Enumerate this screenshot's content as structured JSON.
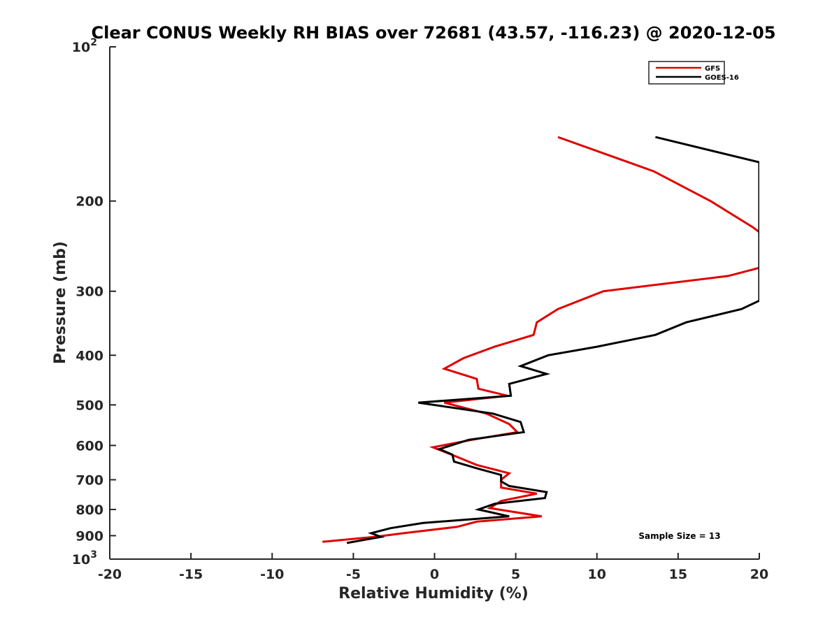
{
  "chart_data": {
    "type": "line",
    "title": "Clear CONUS Weekly RH BIAS over 72681 (43.57, -116.23) @ 2020-12-05",
    "xlabel": "Relative Humidity (%)",
    "ylabel": "Pressure (mb)",
    "xlim": [
      -20,
      20
    ],
    "ylim": [
      100,
      1000
    ],
    "y_scale": "log",
    "y_reversed": true,
    "grid": false,
    "legend_position": "top-right",
    "x_ticks": [
      "-20",
      "-15",
      "-10",
      "-5",
      "0",
      "5",
      "10",
      "15",
      "20"
    ],
    "y_ticks": [
      {
        "value": 100,
        "base": "10",
        "exp": "2"
      },
      {
        "value": 200,
        "label": "200"
      },
      {
        "value": 300,
        "label": "300"
      },
      {
        "value": 400,
        "label": "400"
      },
      {
        "value": 500,
        "label": "500"
      },
      {
        "value": 600,
        "label": "600"
      },
      {
        "value": 700,
        "label": "700"
      },
      {
        "value": 800,
        "label": "800"
      },
      {
        "value": 900,
        "label": "900"
      },
      {
        "value": 1000,
        "base": "10",
        "exp": "3"
      }
    ],
    "series": [
      {
        "name": "GFS",
        "color": "#e00000",
        "points": [
          {
            "x": 7.6,
            "p": 150
          },
          {
            "x": 13.5,
            "p": 175
          },
          {
            "x": 17.0,
            "p": 200
          },
          {
            "x": 19.6,
            "p": 225
          },
          {
            "x": 20.0,
            "p": 230
          },
          {
            "x": 20.0,
            "p": 270
          },
          {
            "x": 18.1,
            "p": 280
          },
          {
            "x": 10.4,
            "p": 300
          },
          {
            "x": 7.6,
            "p": 325
          },
          {
            "x": 6.3,
            "p": 345
          },
          {
            "x": 6.1,
            "p": 365
          },
          {
            "x": 3.7,
            "p": 385
          },
          {
            "x": 1.8,
            "p": 405
          },
          {
            "x": 0.6,
            "p": 425
          },
          {
            "x": 2.6,
            "p": 445
          },
          {
            "x": 2.7,
            "p": 465
          },
          {
            "x": 4.5,
            "p": 480
          },
          {
            "x": 0.6,
            "p": 495
          },
          {
            "x": 3.2,
            "p": 520
          },
          {
            "x": 4.6,
            "p": 545
          },
          {
            "x": 5.1,
            "p": 565
          },
          {
            "x": 2.3,
            "p": 585
          },
          {
            "x": -0.1,
            "p": 605
          },
          {
            "x": 1.3,
            "p": 630
          },
          {
            "x": 2.6,
            "p": 655
          },
          {
            "x": 4.6,
            "p": 680
          },
          {
            "x": 4.1,
            "p": 700
          },
          {
            "x": 4.1,
            "p": 725
          },
          {
            "x": 6.3,
            "p": 745
          },
          {
            "x": 4.1,
            "p": 770
          },
          {
            "x": 3.4,
            "p": 795
          },
          {
            "x": 6.6,
            "p": 825
          },
          {
            "x": 2.6,
            "p": 845
          },
          {
            "x": 1.4,
            "p": 865
          },
          {
            "x": -1.9,
            "p": 890
          },
          {
            "x": -3.7,
            "p": 905
          },
          {
            "x": -6.9,
            "p": 925
          }
        ]
      },
      {
        "name": "GOES-16",
        "color": "#000000",
        "points": [
          {
            "x": 13.6,
            "p": 150
          },
          {
            "x": 20.0,
            "p": 168
          },
          {
            "x": 20.0,
            "p": 313
          },
          {
            "x": 18.9,
            "p": 325
          },
          {
            "x": 15.5,
            "p": 345
          },
          {
            "x": 13.6,
            "p": 365
          },
          {
            "x": 10.0,
            "p": 385
          },
          {
            "x": 7.0,
            "p": 400
          },
          {
            "x": 5.3,
            "p": 420
          },
          {
            "x": 6.9,
            "p": 435
          },
          {
            "x": 4.6,
            "p": 455
          },
          {
            "x": 4.7,
            "p": 480
          },
          {
            "x": -1.0,
            "p": 495
          },
          {
            "x": 3.6,
            "p": 520
          },
          {
            "x": 5.3,
            "p": 540
          },
          {
            "x": 5.5,
            "p": 565
          },
          {
            "x": 2.1,
            "p": 585
          },
          {
            "x": 0.3,
            "p": 610
          },
          {
            "x": 1.1,
            "p": 625
          },
          {
            "x": 1.2,
            "p": 645
          },
          {
            "x": 2.6,
            "p": 665
          },
          {
            "x": 4.1,
            "p": 685
          },
          {
            "x": 4.1,
            "p": 705
          },
          {
            "x": 4.6,
            "p": 720
          },
          {
            "x": 6.9,
            "p": 740
          },
          {
            "x": 6.8,
            "p": 760
          },
          {
            "x": 3.7,
            "p": 780
          },
          {
            "x": 2.7,
            "p": 800
          },
          {
            "x": 4.6,
            "p": 825
          },
          {
            "x": -0.7,
            "p": 850
          },
          {
            "x": -2.7,
            "p": 870
          },
          {
            "x": -3.9,
            "p": 890
          },
          {
            "x": -3.3,
            "p": 905
          },
          {
            "x": -5.4,
            "p": 930
          }
        ]
      }
    ],
    "annotation": "Sample Size = 13"
  }
}
